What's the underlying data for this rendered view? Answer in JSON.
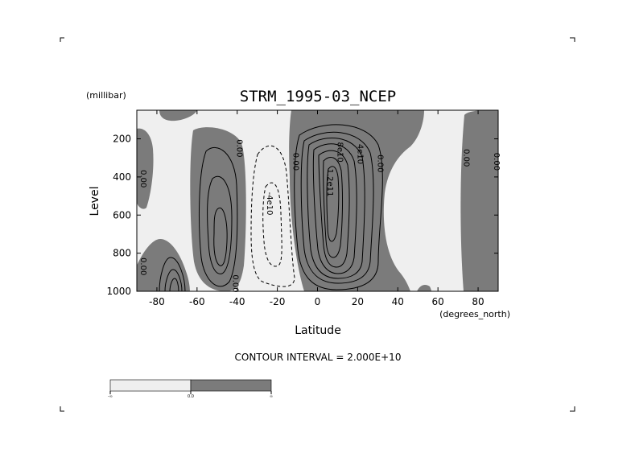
{
  "chart_data": {
    "type": "contour",
    "title": "STRM_1995-03_NCEP",
    "xlabel": "Latitude",
    "x_units": "(degrees_north)",
    "ylabel": "Level",
    "y_units": "(millibar)",
    "xlim": [
      -90,
      90
    ],
    "ylim": [
      1000,
      50
    ],
    "y_reversed": true,
    "x_ticks": [
      -80,
      -60,
      -40,
      -20,
      0,
      20,
      40,
      60,
      80
    ],
    "x_tick_labels": [
      "-80",
      "-60",
      "-40",
      "-20",
      "0",
      "20",
      "40",
      "60",
      "80"
    ],
    "y_ticks": [
      200,
      400,
      600,
      800,
      1000
    ],
    "y_tick_labels": [
      "200",
      "400",
      "600",
      "800",
      "1000"
    ],
    "contour_interval_text": "CONTOUR INTERVAL = 2.000E+10",
    "contour_labels": [
      {
        "text": "0.00",
        "lat": -88,
        "lev": 410
      },
      {
        "text": "0.00",
        "lat": -88,
        "lev": 870
      },
      {
        "text": "0.00",
        "lat": -40,
        "lev": 250
      },
      {
        "text": "0.00",
        "lat": -42,
        "lev": 960
      },
      {
        "text": "-4e10",
        "lat": -25,
        "lev": 540
      },
      {
        "text": "0.00",
        "lat": -12,
        "lev": 320
      },
      {
        "text": "8e10",
        "lat": 10,
        "lev": 270
      },
      {
        "text": "4e10",
        "lat": 20,
        "lev": 280
      },
      {
        "text": "1.2e11",
        "lat": 5,
        "lev": 430
      },
      {
        "text": "0.00",
        "lat": 30,
        "lev": 330
      },
      {
        "text": "0.00",
        "lat": 73,
        "lev": 300
      },
      {
        "text": "0.00",
        "lat": 88,
        "lev": 320
      }
    ],
    "colorbar": {
      "labels": [
        "-∞",
        "0.0",
        "∞"
      ],
      "colors": [
        "#efefef",
        "#7b7b7b"
      ]
    },
    "colors": {
      "negative": "#efefef",
      "positive": "#7b7b7b"
    }
  }
}
